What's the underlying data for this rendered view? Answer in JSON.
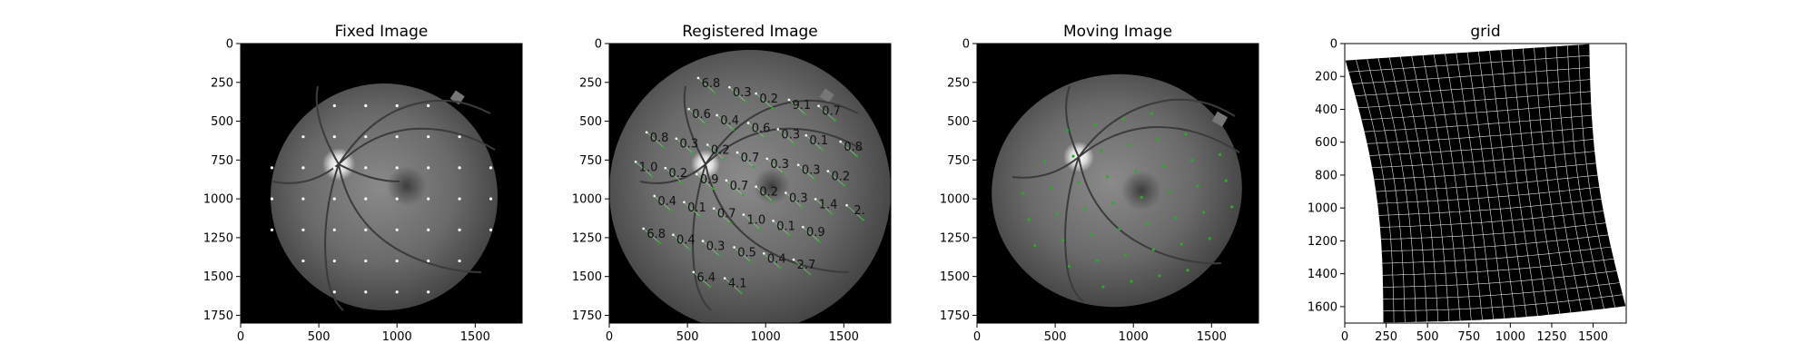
{
  "figure": {
    "panels": [
      {
        "title": "Fixed Image",
        "xticks": [
          0,
          500,
          1000,
          1500
        ],
        "yticks": [
          0,
          250,
          500,
          750,
          1000,
          1250,
          1500,
          1750
        ],
        "xlim": [
          0,
          1800
        ],
        "ylim": [
          1800,
          0
        ]
      },
      {
        "title": "Registered Image",
        "xticks": [
          0,
          500,
          1000,
          1500
        ],
        "yticks": [
          0,
          250,
          500,
          750,
          1000,
          1250,
          1500,
          1750
        ],
        "xlim": [
          0,
          1800
        ],
        "ylim": [
          1800,
          0
        ],
        "error_labels": [
          {
            "text": "6.8",
            "x": 650,
            "y": 280
          },
          {
            "text": "0.3",
            "x": 850,
            "y": 340
          },
          {
            "text": "0.2",
            "x": 1020,
            "y": 380
          },
          {
            "text": "9.1",
            "x": 1230,
            "y": 420
          },
          {
            "text": "0.7",
            "x": 1420,
            "y": 460
          },
          {
            "text": "0.6",
            "x": 590,
            "y": 480
          },
          {
            "text": "0.4",
            "x": 770,
            "y": 520
          },
          {
            "text": "0.6",
            "x": 970,
            "y": 570
          },
          {
            "text": "0.3",
            "x": 1160,
            "y": 610
          },
          {
            "text": "0.1",
            "x": 1340,
            "y": 650
          },
          {
            "text": "0.8",
            "x": 1560,
            "y": 690
          },
          {
            "text": "0.8",
            "x": 320,
            "y": 630
          },
          {
            "text": "0.3",
            "x": 510,
            "y": 670
          },
          {
            "text": "0.2",
            "x": 710,
            "y": 710
          },
          {
            "text": "0.7",
            "x": 900,
            "y": 760
          },
          {
            "text": "0.3",
            "x": 1090,
            "y": 800
          },
          {
            "text": "0.3",
            "x": 1290,
            "y": 840
          },
          {
            "text": "0.2",
            "x": 1480,
            "y": 880
          },
          {
            "text": "1.0",
            "x": 250,
            "y": 820
          },
          {
            "text": "0.2",
            "x": 440,
            "y": 860
          },
          {
            "text": "0.9",
            "x": 640,
            "y": 900
          },
          {
            "text": "0.7",
            "x": 830,
            "y": 940
          },
          {
            "text": "0.2",
            "x": 1020,
            "y": 980
          },
          {
            "text": "0.3",
            "x": 1210,
            "y": 1020
          },
          {
            "text": "1.4",
            "x": 1400,
            "y": 1060
          },
          {
            "text": "2.",
            "x": 1600,
            "y": 1100
          },
          {
            "text": "0.4",
            "x": 370,
            "y": 1040
          },
          {
            "text": "0.1",
            "x": 560,
            "y": 1080
          },
          {
            "text": "0.7",
            "x": 750,
            "y": 1120
          },
          {
            "text": "1.0",
            "x": 940,
            "y": 1160
          },
          {
            "text": "0.1",
            "x": 1130,
            "y": 1200
          },
          {
            "text": "0.9",
            "x": 1320,
            "y": 1240
          },
          {
            "text": "6.8",
            "x": 300,
            "y": 1250
          },
          {
            "text": "0.4",
            "x": 490,
            "y": 1290
          },
          {
            "text": "0.3",
            "x": 680,
            "y": 1330
          },
          {
            "text": "0.5",
            "x": 880,
            "y": 1370
          },
          {
            "text": "0.4",
            "x": 1070,
            "y": 1410
          },
          {
            "text": "2.7",
            "x": 1260,
            "y": 1450
          },
          {
            "text": "6.4",
            "x": 620,
            "y": 1530
          },
          {
            "text": "4.1",
            "x": 820,
            "y": 1570
          }
        ]
      },
      {
        "title": "Moving Image",
        "xticks": [
          0,
          500,
          1000,
          1500
        ],
        "yticks": [
          0,
          250,
          500,
          750,
          1000,
          1250,
          1500,
          1750
        ],
        "xlim": [
          0,
          1800
        ],
        "ylim": [
          1800,
          0
        ]
      },
      {
        "title": "grid",
        "xticks": [
          0,
          250,
          500,
          750,
          1000,
          1250,
          1500
        ],
        "yticks": [
          0,
          200,
          400,
          600,
          800,
          1000,
          1200,
          1400,
          1600
        ],
        "xlim": [
          0,
          1700
        ],
        "ylim": [
          1700,
          0
        ]
      }
    ],
    "colors": {
      "background": "#000000",
      "retina": "#6f6f6f",
      "fixed_landmarks": "#ffffff",
      "moving_landmarks": "#2fa82f",
      "grid_lines": "#e6e6e6",
      "grid_frame": "#ffffff"
    }
  }
}
